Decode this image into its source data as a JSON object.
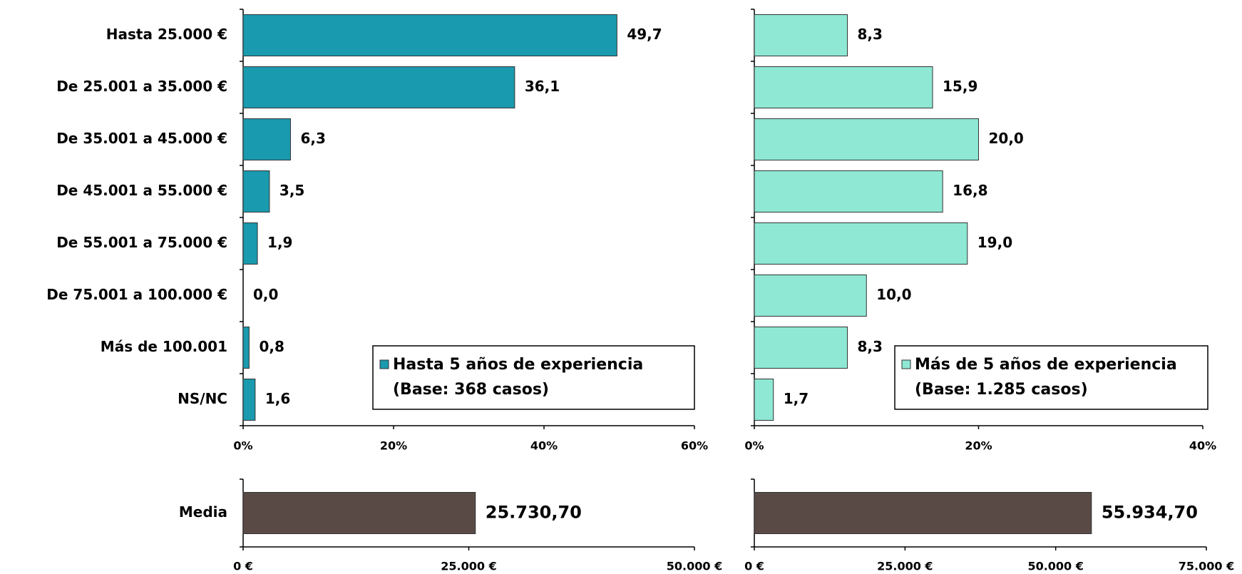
{
  "chart_data": [
    {
      "type": "hbar",
      "categories": [
        "Hasta 25.000 €",
        "De 25.001 a 35.000 €",
        "De 35.001 a 45.000 €",
        "De 45.001 a 55.000 €",
        "De 55.001 a 75.000 €",
        "De 75.001 a 100.000 €",
        "Más de 100.001",
        "NS/NC"
      ],
      "series": [
        {
          "name": "Hasta 5 años de experiencia",
          "note": "(Base: 368 casos)",
          "color": "#1a9aae",
          "values": [
            49.7,
            36.1,
            6.3,
            3.5,
            1.9,
            0.0,
            0.8,
            1.6
          ],
          "value_labels": [
            "49,7",
            "36,1",
            "6,3",
            "3,5",
            "1,9",
            "0,0",
            "0,8",
            "1,6"
          ]
        }
      ],
      "xlim": [
        0,
        60
      ],
      "xticks": [
        {
          "value": 0,
          "label": "0%"
        },
        {
          "value": 20,
          "label": "20%"
        },
        {
          "value": 40,
          "label": "40%"
        },
        {
          "value": 60,
          "label": "60%"
        }
      ]
    },
    {
      "type": "hbar",
      "series": [
        {
          "name": "Más de 5 años de experiencia",
          "note": "(Base: 1.285 casos)",
          "color": "#8ee8d4",
          "values": [
            8.3,
            15.9,
            20.0,
            16.8,
            19.0,
            10.0,
            8.3,
            1.7
          ],
          "value_labels": [
            "8,3",
            "15,9",
            "20,0",
            "16,8",
            "19,0",
            "10,0",
            "8,3",
            "1,7"
          ]
        }
      ],
      "xlim": [
        0,
        40
      ],
      "xticks": [
        {
          "value": 0,
          "label": "0%"
        },
        {
          "value": 20,
          "label": "20%"
        },
        {
          "value": 40,
          "label": "40%"
        }
      ]
    },
    {
      "type": "hbar",
      "categories": [
        "Media"
      ],
      "values": [
        25730.7
      ],
      "value_labels": [
        "25.730,70"
      ],
      "color": "#5a4a46",
      "xlim": [
        0,
        50000
      ],
      "xticks": [
        {
          "value": 0,
          "label": "0 €"
        },
        {
          "value": 25000,
          "label": "25.000 €"
        },
        {
          "value": 50000,
          "label": "50.000 €"
        }
      ]
    },
    {
      "type": "hbar",
      "values": [
        55934.7
      ],
      "value_labels": [
        "55.934,70"
      ],
      "color": "#5a4a46",
      "xlim": [
        0,
        75000
      ],
      "xticks": [
        {
          "value": 0,
          "label": "0 €"
        },
        {
          "value": 25000,
          "label": "25.000 €"
        },
        {
          "value": 50000,
          "label": "50.000 €"
        },
        {
          "value": 75000,
          "label": "75.000 €"
        }
      ]
    }
  ]
}
